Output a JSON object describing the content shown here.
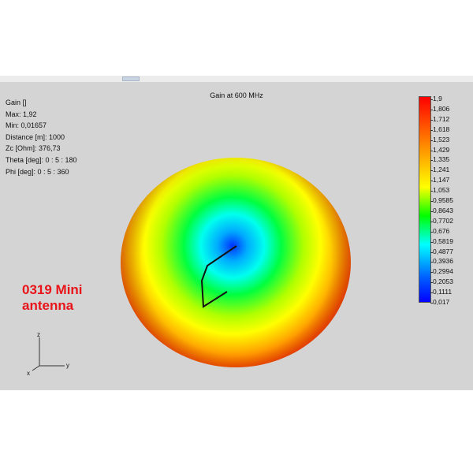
{
  "window": {
    "title": "Gain at 600 MHz"
  },
  "info": {
    "lines": [
      "Gain []",
      "Max: 1,92",
      "Min: 0,01657",
      "Distance [m]: 1000",
      "Zc [Ohm]: 376,73",
      "Theta [deg]: 0 : 5 : 180",
      "Phi [deg]: 0 : 5 : 360"
    ]
  },
  "caption": {
    "line1": "0319 Mini",
    "line2": "antenna"
  },
  "colorbar": {
    "ticks": [
      "1,9",
      "1,806",
      "1,712",
      "1,618",
      "1,523",
      "1,429",
      "1,335",
      "1,241",
      "1,147",
      "1,053",
      "0,9585",
      "0,8643",
      "0,7702",
      "0,676",
      "0,5819",
      "0,4877",
      "0,3936",
      "0,2994",
      "0,2053",
      "0,1111",
      "0,017"
    ]
  },
  "axes": {
    "z": "z",
    "y": "y",
    "x": "x"
  },
  "colors": {
    "caption": "#e8141a",
    "background": "#d4d4d4"
  }
}
